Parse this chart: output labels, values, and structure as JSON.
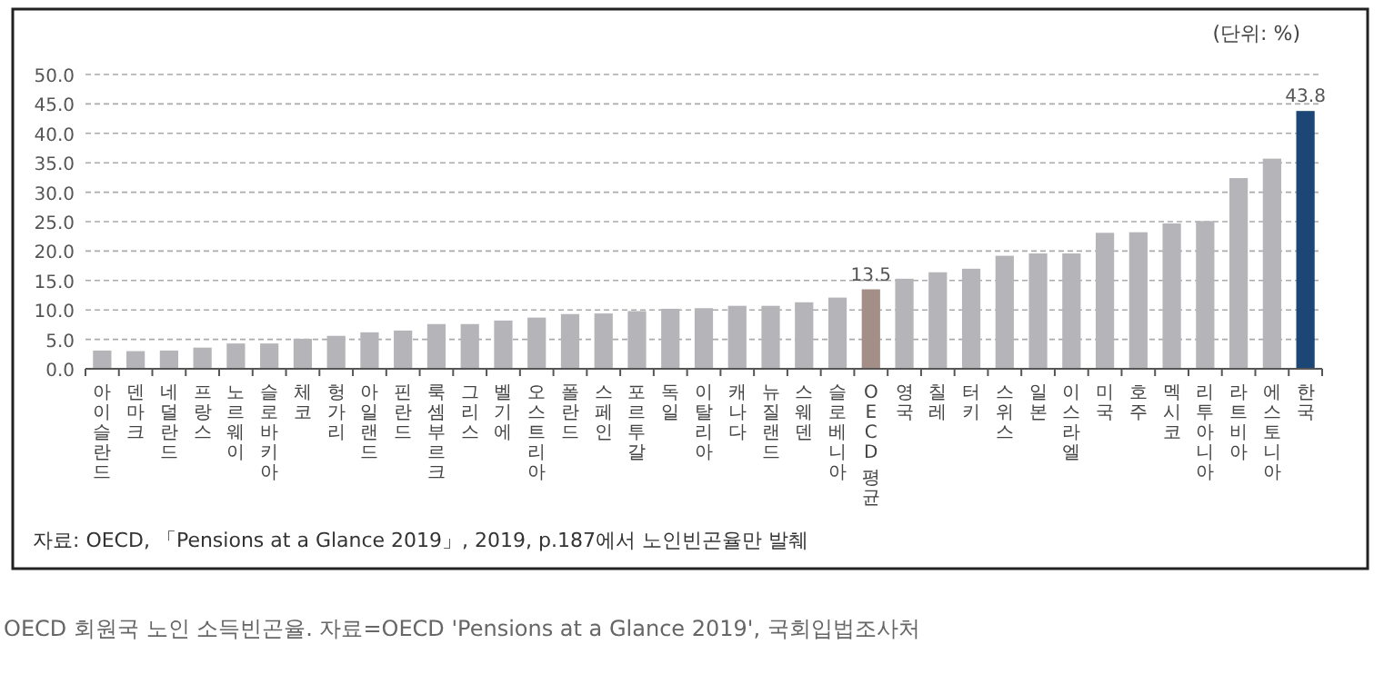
{
  "chart_data": {
    "type": "bar",
    "ylabel": "(단위: %)",
    "categories": [
      "아이슬란드",
      "덴마크",
      "네덜란드",
      "프랑스",
      "노르웨이",
      "슬로바키아",
      "체코",
      "헝가리",
      "아일랜드",
      "핀란드",
      "룩셈부르크",
      "그리스",
      "벨기에",
      "오스트리아",
      "폴란드",
      "스페인",
      "포르투갈",
      "독일",
      "이탈리아",
      "캐나다",
      "뉴질랜드",
      "스웨덴",
      "슬로베니아",
      "OECD 평균",
      "영국",
      "칠레",
      "터키",
      "스위스",
      "일본",
      "이스라엘",
      "미국",
      "호주",
      "멕시코",
      "리투아니아",
      "라트비아",
      "에스토니아",
      "한국"
    ],
    "values": [
      3.1,
      3.0,
      3.1,
      3.6,
      4.3,
      4.3,
      5.1,
      5.6,
      6.2,
      6.5,
      7.6,
      7.6,
      8.2,
      8.7,
      9.3,
      9.4,
      9.8,
      10.2,
      10.3,
      10.7,
      10.7,
      11.3,
      12.1,
      13.5,
      15.3,
      16.4,
      17.0,
      19.2,
      19.6,
      19.6,
      23.1,
      23.2,
      24.7,
      25.1,
      32.4,
      35.7,
      43.8
    ],
    "colors": [
      "#b5b5b9",
      "#b5b5b9",
      "#b5b5b9",
      "#b5b5b9",
      "#b5b5b9",
      "#b5b5b9",
      "#b5b5b9",
      "#b5b5b9",
      "#b5b5b9",
      "#b5b5b9",
      "#b5b5b9",
      "#b5b5b9",
      "#b5b5b9",
      "#b5b5b9",
      "#b5b5b9",
      "#b5b5b9",
      "#b5b5b9",
      "#b5b5b9",
      "#b5b5b9",
      "#b5b5b9",
      "#b5b5b9",
      "#b5b5b9",
      "#b5b5b9",
      "#a38f87",
      "#b5b5b9",
      "#b5b5b9",
      "#b5b5b9",
      "#b5b5b9",
      "#b5b5b9",
      "#b5b5b9",
      "#b5b5b9",
      "#b5b5b9",
      "#b5b5b9",
      "#b5b5b9",
      "#b5b5b9",
      "#b5b5b9",
      "#1b4675"
    ],
    "value_labels": [
      null,
      null,
      null,
      null,
      null,
      null,
      null,
      null,
      null,
      null,
      null,
      null,
      null,
      null,
      null,
      null,
      null,
      null,
      null,
      null,
      null,
      null,
      null,
      "13.5",
      null,
      null,
      null,
      null,
      null,
      null,
      null,
      null,
      null,
      null,
      null,
      null,
      "43.8"
    ],
    "ylim": [
      0,
      50
    ],
    "yticks": [
      {
        "value": 0,
        "label": "0.0"
      },
      {
        "value": 5,
        "label": "5.0"
      },
      {
        "value": 10,
        "label": "10.0"
      },
      {
        "value": 15,
        "label": "15.0"
      },
      {
        "value": 20,
        "label": "20.0"
      },
      {
        "value": 25,
        "label": "25.0"
      },
      {
        "value": 30,
        "label": "30.0"
      },
      {
        "value": 35,
        "label": "35.0"
      },
      {
        "value": 40,
        "label": "40.0"
      },
      {
        "value": 45,
        "label": "45.0"
      },
      {
        "value": 50,
        "label": "50.0"
      }
    ],
    "grid": "y",
    "annotations": [
      "자료: OECD, 「Pensions at a Glance 2019」, 2019, p.187에서 노인빈곤율만 발췌",
      "OECD 회원국 노인 소득빈곤율. 자료=OECD 'Pensions at a Glance 2019', 국회입법조사처"
    ]
  }
}
